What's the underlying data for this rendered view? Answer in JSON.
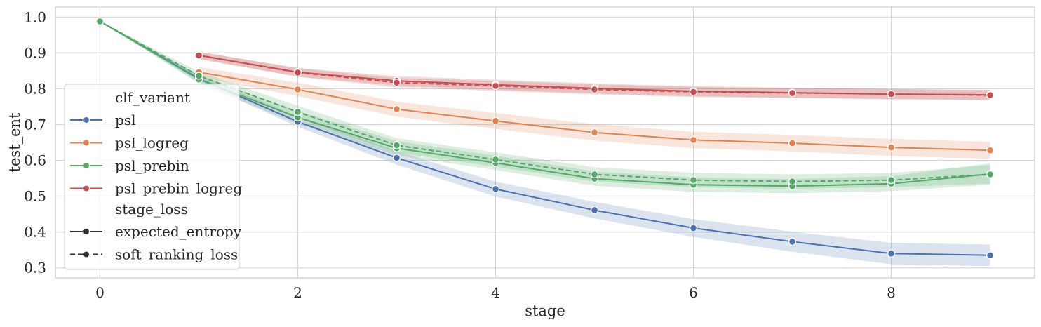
{
  "chart_data": {
    "type": "line",
    "title": "",
    "xlabel": "stage",
    "ylabel": "test_ent",
    "xlim": [
      -0.45,
      9.45
    ],
    "ylim": [
      0.272,
      1.028
    ],
    "xticks": [
      0,
      2,
      4,
      6,
      8
    ],
    "xtick_labels": [
      "0",
      "2",
      "4",
      "6",
      "8"
    ],
    "yticks": [
      0.3,
      0.4,
      0.5,
      0.6,
      0.7,
      0.8,
      0.9,
      1.0
    ],
    "ytick_labels": [
      "0.3",
      "0.4",
      "0.5",
      "0.6",
      "0.7",
      "0.8",
      "0.9",
      "1.0"
    ],
    "grid": true,
    "legend": {
      "placement": "left",
      "hue_title": "clf_variant",
      "style_title": "stage_loss",
      "hue_entries": [
        {
          "label": "psl",
          "color": "#4c72b0"
        },
        {
          "label": "psl_logreg",
          "color": "#dd8452"
        },
        {
          "label": "psl_prebin",
          "color": "#55a868"
        },
        {
          "label": "psl_prebin_logreg",
          "color": "#c44e52"
        }
      ],
      "style_entries": [
        {
          "label": "expected_entropy",
          "dash": "solid"
        },
        {
          "label": "soft_ranking_loss",
          "dash": "dashed"
        }
      ]
    },
    "series": [
      {
        "variant": "psl",
        "stage_loss": "expected_entropy",
        "color": "#4c72b0",
        "dash": "solid",
        "x": [
          0,
          1,
          2,
          3,
          4,
          5,
          6,
          7,
          8,
          9
        ],
        "y": [
          0.988,
          0.828,
          0.708,
          0.607,
          0.52,
          0.461,
          0.411,
          0.373,
          0.34,
          0.335
        ],
        "ci_low": [
          0.988,
          0.818,
          0.694,
          0.588,
          0.499,
          0.438,
          0.386,
          0.345,
          0.31,
          0.305
        ],
        "ci_high": [
          0.988,
          0.838,
          0.722,
          0.626,
          0.541,
          0.484,
          0.436,
          0.401,
          0.37,
          0.365
        ]
      },
      {
        "variant": "psl_logreg",
        "stage_loss": "expected_entropy",
        "color": "#dd8452",
        "dash": "solid",
        "x": [
          1,
          2,
          3,
          4,
          5,
          6,
          7,
          8,
          9
        ],
        "y": [
          0.846,
          0.798,
          0.743,
          0.71,
          0.678,
          0.657,
          0.648,
          0.636,
          0.628
        ],
        "ci_low": [
          0.832,
          0.779,
          0.722,
          0.688,
          0.655,
          0.634,
          0.625,
          0.612,
          0.604
        ],
        "ci_high": [
          0.86,
          0.817,
          0.764,
          0.732,
          0.701,
          0.68,
          0.671,
          0.66,
          0.652
        ]
      },
      {
        "variant": "psl_prebin",
        "stage_loss": "expected_entropy",
        "color": "#55a868",
        "dash": "solid",
        "x": [
          0,
          1,
          2,
          3,
          4,
          5,
          6,
          7,
          8,
          9
        ],
        "y": [
          0.988,
          0.826,
          0.72,
          0.634,
          0.593,
          0.549,
          0.532,
          0.528,
          0.535,
          0.562
        ],
        "ci_low": [
          0.988,
          0.814,
          0.702,
          0.614,
          0.573,
          0.529,
          0.512,
          0.508,
          0.514,
          0.532
        ],
        "ci_high": [
          0.988,
          0.838,
          0.738,
          0.654,
          0.613,
          0.569,
          0.552,
          0.548,
          0.556,
          0.592
        ]
      },
      {
        "variant": "psl_prebin",
        "stage_loss": "soft_ranking_loss",
        "color": "#55a868",
        "dash": "dashed",
        "x": [
          0,
          1,
          2,
          3,
          4,
          5,
          6,
          7,
          8,
          9
        ],
        "y": [
          0.988,
          0.836,
          0.735,
          0.642,
          0.602,
          0.561,
          0.545,
          0.541,
          0.545,
          0.561
        ],
        "ci_low": [
          0.988,
          0.824,
          0.718,
          0.622,
          0.582,
          0.541,
          0.525,
          0.521,
          0.525,
          0.535
        ],
        "ci_high": [
          0.988,
          0.848,
          0.752,
          0.662,
          0.622,
          0.581,
          0.565,
          0.561,
          0.565,
          0.587
        ]
      },
      {
        "variant": "psl_prebin_logreg",
        "stage_loss": "expected_entropy",
        "color": "#c44e52",
        "dash": "solid",
        "x": [
          1,
          2,
          3,
          4,
          5,
          6,
          7,
          8,
          9
        ],
        "y": [
          0.893,
          0.846,
          0.822,
          0.811,
          0.801,
          0.793,
          0.789,
          0.785,
          0.783
        ],
        "ci_low": [
          0.883,
          0.834,
          0.809,
          0.797,
          0.787,
          0.779,
          0.775,
          0.771,
          0.769
        ],
        "ci_high": [
          0.903,
          0.858,
          0.835,
          0.825,
          0.815,
          0.807,
          0.803,
          0.799,
          0.797
        ]
      },
      {
        "variant": "psl_prebin_logreg",
        "stage_loss": "soft_ranking_loss",
        "color": "#c44e52",
        "dash": "dashed",
        "x": [
          1,
          2,
          3,
          4,
          5,
          6,
          7,
          8,
          9
        ],
        "y": [
          0.893,
          0.845,
          0.817,
          0.808,
          0.798,
          0.791,
          0.788,
          0.785,
          0.782
        ],
        "ci_low": [
          0.883,
          0.833,
          0.804,
          0.794,
          0.784,
          0.777,
          0.774,
          0.771,
          0.768
        ],
        "ci_high": [
          0.903,
          0.857,
          0.83,
          0.822,
          0.812,
          0.805,
          0.802,
          0.799,
          0.796
        ]
      }
    ]
  }
}
